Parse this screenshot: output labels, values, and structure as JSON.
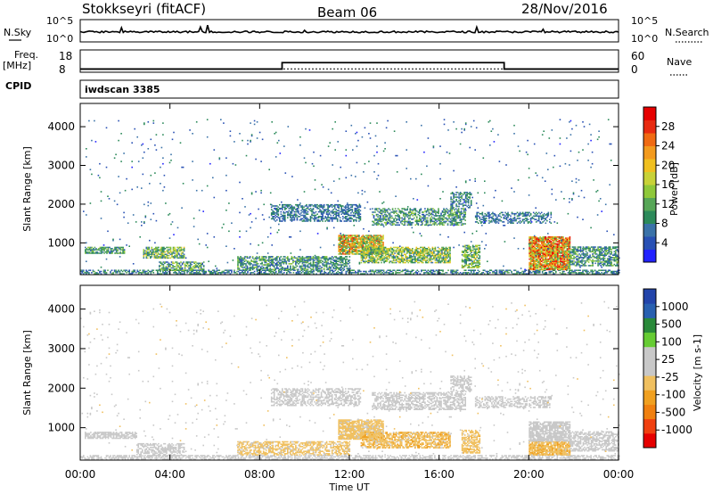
{
  "header": {
    "station": "Stokkseyri (fitACF)",
    "beam": "Beam 06",
    "date": "28/Nov/2016"
  },
  "status_panels": {
    "nsky_label": "N.Sky",
    "nsearch_label": "N.Search",
    "nsky_ticks": [
      "10^5",
      "10^0"
    ],
    "freq_label_top": "Freq.",
    "freq_label_unit": "[MHz]",
    "freq_ticks": [
      "18",
      "8"
    ],
    "nave_label": "Nave",
    "nave_ticks": [
      "60",
      "0"
    ],
    "cpid_label": "CPID",
    "cpid_value": "iwdscan 3385"
  },
  "axes": {
    "xlabel": "Time UT",
    "x_ticks": [
      "00:00",
      "04:00",
      "08:00",
      "12:00",
      "16:00",
      "20:00",
      "00:00"
    ],
    "ylabel": "Slant Range [km]",
    "y_ticks": [
      "4000",
      "3000",
      "2000",
      "1000"
    ],
    "y_range_km": [
      180,
      4600
    ]
  },
  "chart_data": [
    {
      "type": "heatmap",
      "name": "power",
      "colorbar_label": "Power [dB]",
      "colorbar_ticks": [
        "28",
        "24",
        "20",
        "16",
        "12",
        "8",
        "4"
      ],
      "colorbar_range": [
        0,
        30
      ],
      "colors": [
        "#2222ff",
        "#2850b4",
        "#3a72a8",
        "#2c8a5a",
        "#57a657",
        "#8fc83a",
        "#c8d238",
        "#f0c020",
        "#f39a1d",
        "#f06a12",
        "#e82a10",
        "#e60000"
      ],
      "x_range_hours": [
        0,
        24
      ],
      "features": [
        {
          "t0": 0.0,
          "t1": 24.0,
          "r0": 190,
          "r1": 300,
          "v0": 3,
          "v1": 12,
          "density": 0.55
        },
        {
          "t0": 0.2,
          "t1": 2.0,
          "r0": 720,
          "r1": 880,
          "v0": 4,
          "v1": 14,
          "density": 0.7
        },
        {
          "t0": 2.8,
          "t1": 4.6,
          "r0": 600,
          "r1": 900,
          "v0": 5,
          "v1": 18,
          "density": 0.7
        },
        {
          "t0": 3.5,
          "t1": 5.5,
          "r0": 280,
          "r1": 500,
          "v0": 4,
          "v1": 16,
          "density": 0.6
        },
        {
          "t0": 7.0,
          "t1": 12.0,
          "r0": 300,
          "r1": 650,
          "v0": 4,
          "v1": 14,
          "density": 0.6
        },
        {
          "t0": 8.5,
          "t1": 12.5,
          "r0": 1550,
          "r1": 2000,
          "v0": 3,
          "v1": 10,
          "density": 0.5
        },
        {
          "t0": 11.5,
          "t1": 13.5,
          "r0": 700,
          "r1": 1200,
          "v0": 8,
          "v1": 26,
          "density": 0.85
        },
        {
          "t0": 12.5,
          "t1": 16.5,
          "r0": 480,
          "r1": 900,
          "v0": 6,
          "v1": 20,
          "density": 0.7
        },
        {
          "t0": 13.0,
          "t1": 17.2,
          "r0": 1450,
          "r1": 1900,
          "v0": 4,
          "v1": 14,
          "density": 0.55
        },
        {
          "t0": 16.5,
          "t1": 17.4,
          "r0": 1900,
          "r1": 2300,
          "v0": 4,
          "v1": 12,
          "density": 0.5
        },
        {
          "t0": 17.0,
          "t1": 17.8,
          "r0": 350,
          "r1": 950,
          "v0": 6,
          "v1": 18,
          "density": 0.6
        },
        {
          "t0": 17.6,
          "t1": 21.0,
          "r0": 1500,
          "r1": 1800,
          "v0": 3,
          "v1": 10,
          "density": 0.45
        },
        {
          "t0": 20.0,
          "t1": 21.8,
          "r0": 300,
          "r1": 1150,
          "v0": 10,
          "v1": 29,
          "density": 0.9
        },
        {
          "t0": 21.8,
          "t1": 24.0,
          "r0": 400,
          "r1": 900,
          "v0": 4,
          "v1": 14,
          "density": 0.6
        },
        {
          "t0": 0.0,
          "t1": 24.0,
          "r0": 300,
          "r1": 4200,
          "v0": 2,
          "v1": 10,
          "density": 0.012
        }
      ]
    },
    {
      "type": "heatmap",
      "name": "velocity",
      "colorbar_label": "Velocity [m s-1]",
      "colorbar_ticks": [
        "1000",
        "500",
        "100",
        "25",
        "-25",
        "-100",
        "-500",
        "-1000"
      ],
      "colorbar_range": [
        -1200,
        1200
      ],
      "colors": [
        "#e60000",
        "#f04010",
        "#f08010",
        "#f0a020",
        "#f0c060",
        "#c8c8c8",
        "#c8c8c8",
        "#66cc33",
        "#2a8a3a",
        "#2860b0",
        "#2244aa"
      ],
      "x_range_hours": [
        0,
        24
      ],
      "features": [
        {
          "t0": 0.0,
          "t1": 24.0,
          "r0": 190,
          "r1": 300,
          "v0": 0,
          "v1": 150,
          "density": 0.55
        },
        {
          "t0": 0.2,
          "t1": 2.5,
          "r0": 720,
          "r1": 880,
          "v0": -20,
          "v1": 20,
          "density": 0.7
        },
        {
          "t0": 2.5,
          "t1": 4.6,
          "r0": 280,
          "r1": 600,
          "v0": 30,
          "v1": 120,
          "density": 0.6
        },
        {
          "t0": 7.0,
          "t1": 12.0,
          "r0": 300,
          "r1": 650,
          "v0": -250,
          "v1": -80,
          "density": 0.6
        },
        {
          "t0": 8.5,
          "t1": 12.5,
          "r0": 1550,
          "r1": 2000,
          "v0": -20,
          "v1": 20,
          "density": 0.5
        },
        {
          "t0": 11.5,
          "t1": 13.5,
          "r0": 700,
          "r1": 1200,
          "v0": -300,
          "v1": -60,
          "density": 0.85
        },
        {
          "t0": 12.5,
          "t1": 16.5,
          "r0": 480,
          "r1": 900,
          "v0": -400,
          "v1": -90,
          "density": 0.7
        },
        {
          "t0": 13.0,
          "t1": 17.2,
          "r0": 1450,
          "r1": 1900,
          "v0": -20,
          "v1": 20,
          "density": 0.55
        },
        {
          "t0": 16.5,
          "t1": 17.4,
          "r0": 1900,
          "r1": 2300,
          "v0": -20,
          "v1": 20,
          "density": 0.5
        },
        {
          "t0": 17.0,
          "t1": 17.8,
          "r0": 350,
          "r1": 950,
          "v0": -350,
          "v1": -100,
          "density": 0.6
        },
        {
          "t0": 17.6,
          "t1": 21.0,
          "r0": 1500,
          "r1": 1800,
          "v0": -20,
          "v1": 20,
          "density": 0.45
        },
        {
          "t0": 20.0,
          "t1": 21.8,
          "r0": 300,
          "r1": 650,
          "v0": -400,
          "v1": -100,
          "density": 0.85
        },
        {
          "t0": 20.0,
          "t1": 21.8,
          "r0": 650,
          "r1": 1150,
          "v0": -20,
          "v1": 20,
          "density": 0.8
        },
        {
          "t0": 21.8,
          "t1": 24.0,
          "r0": 400,
          "r1": 900,
          "v0": -20,
          "v1": 20,
          "density": 0.6
        },
        {
          "t0": 0.0,
          "t1": 24.0,
          "r0": 300,
          "r1": 4200,
          "v0": -150,
          "v1": 150,
          "density": 0.012
        }
      ]
    }
  ],
  "status_series": {
    "nsky_level": 0.45,
    "freq_steps": [
      [
        0,
        8
      ],
      [
        9.0,
        12
      ],
      [
        18.9,
        8
      ],
      [
        24,
        8
      ]
    ],
    "nave_level": 0.15
  }
}
